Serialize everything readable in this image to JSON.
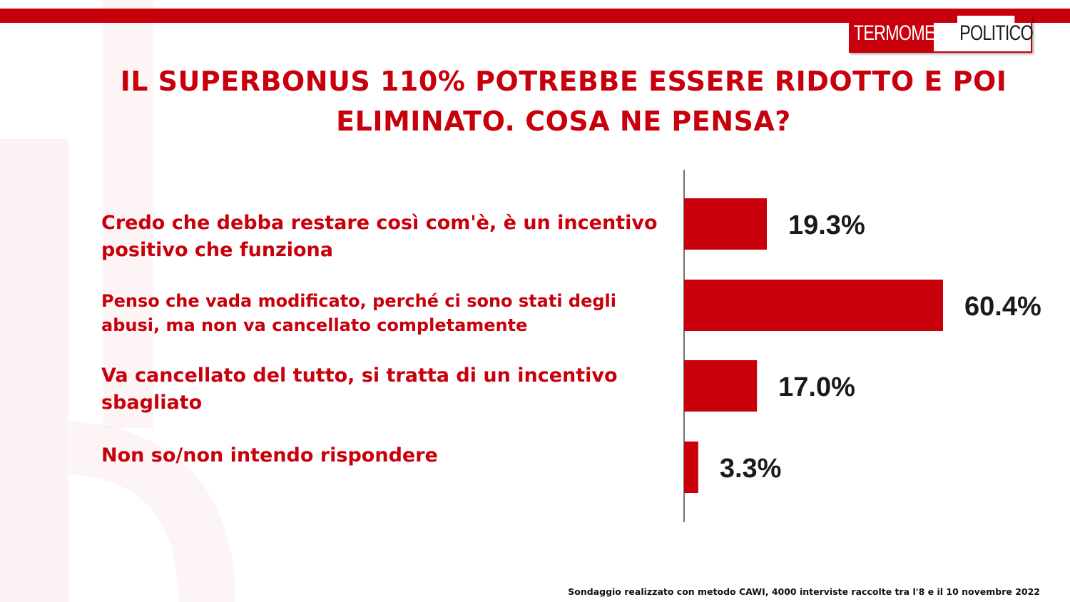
{
  "header": {
    "logo_part1": "TERMOMETRO",
    "logo_part2": "POLITICO"
  },
  "title": "IL SUPERBONUS 110% POTREBBE ESSERE RIDOTTO E POI ELIMINATO. COSA NE PENSA?",
  "footer_note": "Sondaggio realizzato con metodo CAWI, 4000 interviste raccolte tra l'8 e il 10 novembre 2022",
  "colors": {
    "accent": "#c8000b",
    "bar": "#c8000b",
    "text_value": "#1a1a1a"
  },
  "chart_data": {
    "type": "bar",
    "orientation": "horizontal",
    "title": "IL SUPERBONUS 110% POTREBBE ESSERE RIDOTTO E POI ELIMINATO. COSA NE PENSA?",
    "categories": [
      "Credo che debba restare così com'è, è un incentivo positivo che funziona",
      "Penso che vada modificato, perché ci sono stati degli abusi, ma non va cancellato completamente",
      "Va cancellato del tutto, si tratta di un incentivo sbagliato",
      "Non so/non intendo rispondere"
    ],
    "values": [
      19.3,
      60.4,
      17.0,
      3.3
    ],
    "value_labels": [
      "19.3%",
      "60.4%",
      "17.0%",
      "3.3%"
    ],
    "unit": "%",
    "xlim": [
      0,
      60.4
    ],
    "grid": false,
    "legend": "none"
  }
}
